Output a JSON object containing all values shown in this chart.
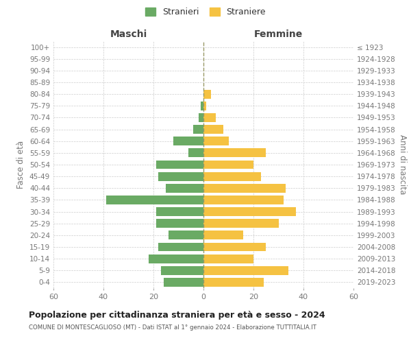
{
  "age_groups": [
    "0-4",
    "5-9",
    "10-14",
    "15-19",
    "20-24",
    "25-29",
    "30-34",
    "35-39",
    "40-44",
    "45-49",
    "50-54",
    "55-59",
    "60-64",
    "65-69",
    "70-74",
    "75-79",
    "80-84",
    "85-89",
    "90-94",
    "95-99",
    "100+"
  ],
  "birth_years": [
    "2019-2023",
    "2014-2018",
    "2009-2013",
    "2004-2008",
    "1999-2003",
    "1994-1998",
    "1989-1993",
    "1984-1988",
    "1979-1983",
    "1974-1978",
    "1969-1973",
    "1964-1968",
    "1959-1963",
    "1954-1958",
    "1949-1953",
    "1944-1948",
    "1939-1943",
    "1934-1938",
    "1929-1933",
    "1924-1928",
    "≤ 1923"
  ],
  "males": [
    16,
    17,
    22,
    18,
    14,
    19,
    19,
    39,
    15,
    18,
    19,
    6,
    12,
    4,
    2,
    1,
    0,
    0,
    0,
    0,
    0
  ],
  "females": [
    24,
    34,
    20,
    25,
    16,
    30,
    37,
    32,
    33,
    23,
    20,
    25,
    10,
    8,
    5,
    1,
    3,
    0,
    0,
    0,
    0
  ],
  "male_color": "#6aaa64",
  "female_color": "#f5c242",
  "background_color": "#ffffff",
  "grid_color": "#cccccc",
  "dashed_line_color": "#999966",
  "title": "Popolazione per cittadinanza straniera per età e sesso - 2024",
  "subtitle": "COMUNE DI MONTESCAGLIOSO (MT) - Dati ISTAT al 1° gennaio 2024 - Elaborazione TUTTITALIA.IT",
  "legend_males": "Stranieri",
  "legend_females": "Straniere",
  "xlabel_left": "Maschi",
  "xlabel_right": "Femmine",
  "ylabel_left": "Fasce di età",
  "ylabel_right": "Anni di nascita",
  "xlim": 60,
  "bar_height": 0.75,
  "tick_color": "#777777",
  "label_color": "#444444"
}
